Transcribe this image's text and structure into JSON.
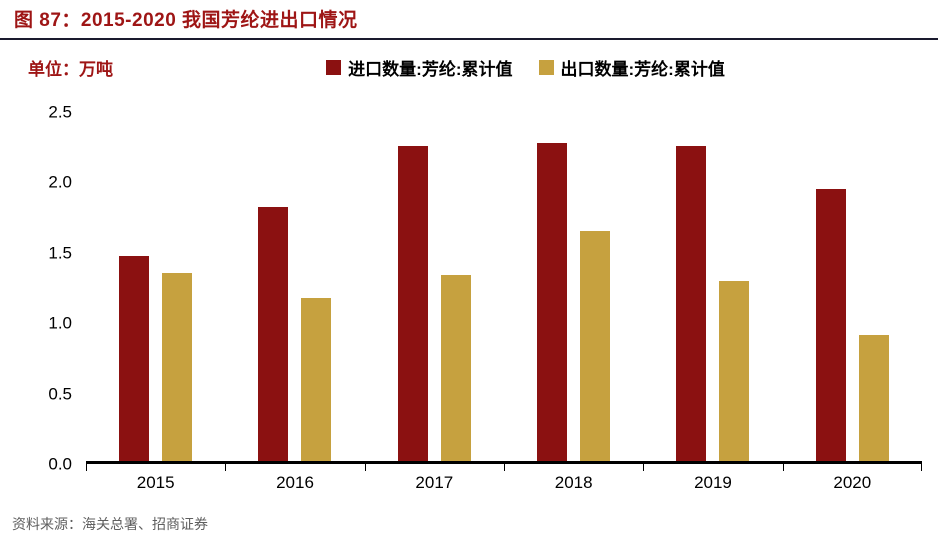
{
  "header": {
    "title": "图 87：2015-2020 我国芳纶进出口情况"
  },
  "unit_label": "单位：万吨",
  "source": "资料来源：海关总署、招商证券",
  "theme": {
    "title_color": "#9E1515",
    "rule_color": "#1a1a2e",
    "import_color": "#8B1111",
    "export_color": "#C6A13F"
  },
  "chart_data": {
    "type": "bar",
    "title": "图 87：2015-2020 我国芳纶进出口情况",
    "unit": "万吨",
    "categories": [
      "2015",
      "2016",
      "2017",
      "2018",
      "2019",
      "2020"
    ],
    "series": [
      {
        "name": "进口数量:芳纶:累计值",
        "color": "#8B1111",
        "values": [
          1.47,
          1.82,
          2.26,
          2.28,
          2.26,
          1.95
        ]
      },
      {
        "name": "出口数量:芳纶:累计值",
        "color": "#C6A13F",
        "values": [
          1.35,
          1.17,
          1.33,
          1.65,
          1.29,
          0.9
        ]
      }
    ],
    "xlabel": "",
    "ylabel": "",
    "ylim": [
      0,
      2.5
    ],
    "yticks": [
      0.0,
      0.5,
      1.0,
      1.5,
      2.0,
      2.5
    ],
    "grid": false,
    "legend_position": "top"
  }
}
